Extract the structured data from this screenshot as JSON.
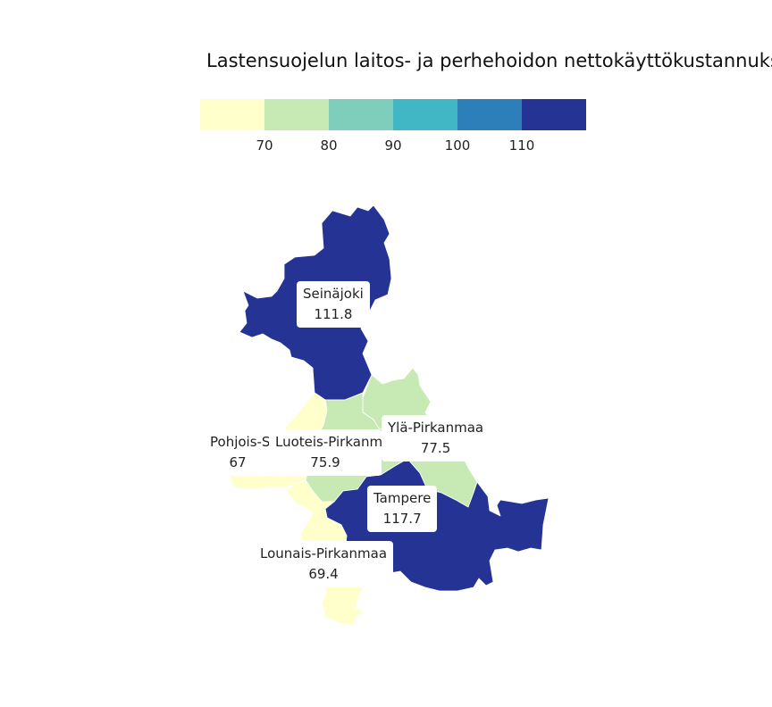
{
  "title": "Lastensuojelun laitos- ja perhehoidon nettokäyttökustannuks",
  "legend": {
    "colors": [
      "#ffffcc",
      "#c7e9b4",
      "#7fcdbb",
      "#41b6c4",
      "#2c7fb8",
      "#253494"
    ],
    "ticks": [
      "70",
      "80",
      "90",
      "100",
      "110"
    ]
  },
  "regions": {
    "seinajoki": {
      "name": "Seinäjoki",
      "value": "111.8",
      "color": "#253494"
    },
    "pohjois_satakunta": {
      "name": "Pohjois-S",
      "value": "67",
      "color": "#ffffcc"
    },
    "luoteis_pirkanmaa": {
      "name": "Luoteis-Pirkanm",
      "value": "75.9",
      "color": "#c7e9b4"
    },
    "yla_pirkanmaa": {
      "name": "Ylä-Pirkanmaa",
      "value": "77.5",
      "color": "#c7e9b4"
    },
    "tampere": {
      "name": "Tampere",
      "value": "117.7",
      "color": "#253494"
    },
    "lounais_pirkanmaa": {
      "name": "Lounais-Pirkanmaa",
      "value": "69.4",
      "color": "#ffffcc"
    }
  }
}
